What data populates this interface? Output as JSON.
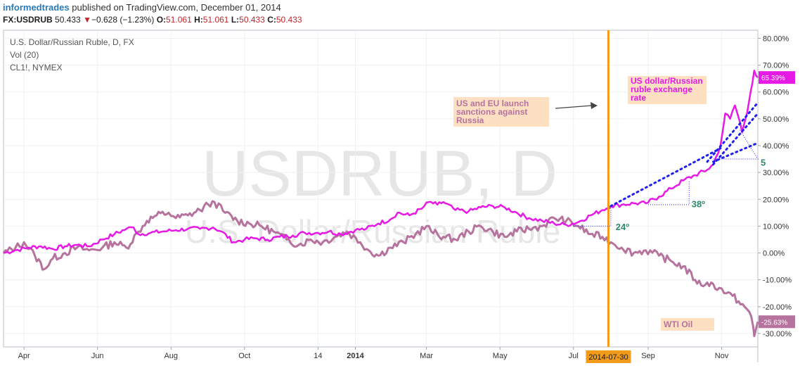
{
  "header": {
    "brand": "informedtrades",
    "published": "published on TradingView.com, December 01, 2014",
    "symbol": "FX:USDRUB",
    "last": "50.433",
    "change_arrow": "▼",
    "change": "−0.628 (−1.23%)",
    "o_label": "O:",
    "o_value": "51.061",
    "h_label": "H:",
    "h_value": "51.061",
    "l_label": "L:",
    "l_value": "50.433",
    "c_label": "C:",
    "c_value": "50.433"
  },
  "legend": {
    "line1": "U.S. Dollar/Russian Ruble, D, FX",
    "line2": "Vol (20)",
    "line3": "CL1!, NYMEX"
  },
  "watermark": {
    "big": "USDRUB, D",
    "small": "U.S. Dollar/Russian Ruble"
  },
  "chart_data": {
    "type": "line",
    "ylim": [
      -35,
      83
    ],
    "xlim": [
      "2013-03-15",
      "2014-12-01"
    ],
    "y_ticks": [
      {
        "v": 80,
        "label": "80.00%"
      },
      {
        "v": 70,
        "label": "70.00%"
      },
      {
        "v": 60,
        "label": "60.00%"
      },
      {
        "v": 50,
        "label": "50.00%"
      },
      {
        "v": 40,
        "label": "40.00%"
      },
      {
        "v": 30,
        "label": "30.00%"
      },
      {
        "v": 20,
        "label": "20.00%"
      },
      {
        "v": 10,
        "label": "10.00%"
      },
      {
        "v": 0,
        "label": "0.00%"
      },
      {
        "v": -10,
        "label": "-10.00%"
      },
      {
        "v": -20,
        "label": "-20.00%"
      },
      {
        "v": -30,
        "label": "-30.00%"
      }
    ],
    "x_ticks": [
      {
        "date": "2013-04-01",
        "label": "Apr",
        "bold": false
      },
      {
        "date": "2013-06-01",
        "label": "Jun",
        "bold": false
      },
      {
        "date": "2013-08-01",
        "label": "Aug",
        "bold": false
      },
      {
        "date": "2013-10-01",
        "label": "Oct",
        "bold": false
      },
      {
        "date": "2013-12-01",
        "label": "14",
        "bold": false
      },
      {
        "date": "2014-01-01",
        "label": "2014",
        "bold": true
      },
      {
        "date": "2014-03-01",
        "label": "Mar",
        "bold": false
      },
      {
        "date": "2014-05-01",
        "label": "May",
        "bold": false
      },
      {
        "date": "2014-07-01",
        "label": "Jul",
        "bold": false
      },
      {
        "date": "2014-09-01",
        "label": "Sep",
        "bold": false
      },
      {
        "date": "2014-11-01",
        "label": "Nov",
        "bold": false
      }
    ],
    "series": [
      {
        "name": "USDRUB",
        "color": "#e619e6",
        "last_label": "65.39%",
        "points": [
          [
            "2013-03-15",
            0
          ],
          [
            "2013-03-25",
            1
          ],
          [
            "2013-04-05",
            2
          ],
          [
            "2013-04-15",
            2.5
          ],
          [
            "2013-04-25",
            1.5
          ],
          [
            "2013-05-05",
            2.5
          ],
          [
            "2013-05-15",
            3
          ],
          [
            "2013-05-25",
            2.5
          ],
          [
            "2013-06-05",
            5
          ],
          [
            "2013-06-15",
            7
          ],
          [
            "2013-06-25",
            9
          ],
          [
            "2013-07-01",
            9.5
          ],
          [
            "2013-07-05",
            7
          ],
          [
            "2013-07-15",
            7.5
          ],
          [
            "2013-07-25",
            8
          ],
          [
            "2013-08-05",
            8.5
          ],
          [
            "2013-08-15",
            9
          ],
          [
            "2013-08-25",
            9
          ],
          [
            "2013-09-05",
            9.5
          ],
          [
            "2013-09-12",
            8
          ],
          [
            "2013-09-22",
            4
          ],
          [
            "2013-10-01",
            5
          ],
          [
            "2013-10-10",
            5.5
          ],
          [
            "2013-10-20",
            5
          ],
          [
            "2013-10-30",
            6
          ],
          [
            "2013-11-10",
            6.5
          ],
          [
            "2013-11-20",
            7.5
          ],
          [
            "2013-12-01",
            7.5
          ],
          [
            "2013-12-10",
            8
          ],
          [
            "2013-12-20",
            7
          ],
          [
            "2014-01-01",
            8.5
          ],
          [
            "2014-01-10",
            9
          ],
          [
            "2014-01-20",
            11
          ],
          [
            "2014-01-30",
            12.5
          ],
          [
            "2014-02-05",
            15
          ],
          [
            "2014-02-15",
            14
          ],
          [
            "2014-02-25",
            16.5
          ],
          [
            "2014-03-03",
            19
          ],
          [
            "2014-03-10",
            18
          ],
          [
            "2014-03-15",
            19
          ],
          [
            "2014-03-25",
            16
          ],
          [
            "2014-04-05",
            15.5
          ],
          [
            "2014-04-15",
            17
          ],
          [
            "2014-04-25",
            17.5
          ],
          [
            "2014-05-05",
            17
          ],
          [
            "2014-05-15",
            15
          ],
          [
            "2014-05-25",
            13
          ],
          [
            "2014-06-05",
            12
          ],
          [
            "2014-06-15",
            11
          ],
          [
            "2014-06-25",
            10.5
          ],
          [
            "2014-07-05",
            11.5
          ],
          [
            "2014-07-15",
            14
          ],
          [
            "2014-07-25",
            16
          ],
          [
            "2014-08-01",
            17.5
          ],
          [
            "2014-08-10",
            18
          ],
          [
            "2014-08-20",
            18.5
          ],
          [
            "2014-08-30",
            18.5
          ],
          [
            "2014-09-10",
            21
          ],
          [
            "2014-09-20",
            24
          ],
          [
            "2014-09-30",
            27
          ],
          [
            "2014-10-10",
            29
          ],
          [
            "2014-10-20",
            31
          ],
          [
            "2014-10-25",
            33
          ],
          [
            "2014-10-31",
            40
          ],
          [
            "2014-11-04",
            52
          ],
          [
            "2014-11-08",
            50
          ],
          [
            "2014-11-12",
            55
          ],
          [
            "2014-11-16",
            49
          ],
          [
            "2014-11-18",
            45
          ],
          [
            "2014-11-22",
            52
          ],
          [
            "2014-11-25",
            60
          ],
          [
            "2014-11-28",
            68
          ],
          [
            "2014-12-01",
            65.39
          ]
        ]
      },
      {
        "name": "CL1!",
        "color": "#b5739e",
        "last_label": "-25.63%",
        "points": [
          [
            "2013-03-15",
            0
          ],
          [
            "2013-03-25",
            2
          ],
          [
            "2013-04-01",
            4
          ],
          [
            "2013-04-10",
            -1
          ],
          [
            "2013-04-18",
            -6
          ],
          [
            "2013-04-25",
            -2
          ],
          [
            "2013-05-05",
            0
          ],
          [
            "2013-05-15",
            2
          ],
          [
            "2013-05-25",
            1
          ],
          [
            "2013-06-05",
            2
          ],
          [
            "2013-06-15",
            4
          ],
          [
            "2013-06-25",
            2
          ],
          [
            "2013-07-05",
            8
          ],
          [
            "2013-07-12",
            12
          ],
          [
            "2013-07-20",
            14
          ],
          [
            "2013-07-30",
            15
          ],
          [
            "2013-08-05",
            13
          ],
          [
            "2013-08-15",
            14
          ],
          [
            "2013-08-25",
            16
          ],
          [
            "2013-09-01",
            18
          ],
          [
            "2013-09-06",
            19
          ],
          [
            "2013-09-15",
            15
          ],
          [
            "2013-09-25",
            12
          ],
          [
            "2013-10-05",
            11
          ],
          [
            "2013-10-15",
            10
          ],
          [
            "2013-10-25",
            8
          ],
          [
            "2013-11-05",
            5
          ],
          [
            "2013-11-15",
            3
          ],
          [
            "2013-11-25",
            5
          ],
          [
            "2013-12-05",
            4
          ],
          [
            "2013-12-15",
            6
          ],
          [
            "2013-12-25",
            8
          ],
          [
            "2014-01-05",
            4
          ],
          [
            "2014-01-12",
            1
          ],
          [
            "2014-01-20",
            -1
          ],
          [
            "2014-01-30",
            2
          ],
          [
            "2014-02-10",
            4
          ],
          [
            "2014-02-20",
            7
          ],
          [
            "2014-03-01",
            10
          ],
          [
            "2014-03-05",
            8
          ],
          [
            "2014-03-15",
            6
          ],
          [
            "2014-03-25",
            5
          ],
          [
            "2014-04-05",
            8
          ],
          [
            "2014-04-15",
            10
          ],
          [
            "2014-04-25",
            8
          ],
          [
            "2014-05-05",
            6
          ],
          [
            "2014-05-15",
            8
          ],
          [
            "2014-05-25",
            9
          ],
          [
            "2014-06-05",
            10
          ],
          [
            "2014-06-15",
            13
          ],
          [
            "2014-06-25",
            12
          ],
          [
            "2014-07-05",
            10
          ],
          [
            "2014-07-15",
            7
          ],
          [
            "2014-07-25",
            6
          ],
          [
            "2014-08-01",
            4
          ],
          [
            "2014-08-10",
            2
          ],
          [
            "2014-08-20",
            0
          ],
          [
            "2014-08-30",
            1
          ],
          [
            "2014-09-10",
            -1
          ],
          [
            "2014-09-20",
            -3
          ],
          [
            "2014-09-30",
            -5
          ],
          [
            "2014-10-10",
            -10
          ],
          [
            "2014-10-15",
            -12
          ],
          [
            "2014-10-20",
            -11
          ],
          [
            "2014-10-30",
            -13
          ],
          [
            "2014-11-05",
            -15
          ],
          [
            "2014-11-10",
            -16
          ],
          [
            "2014-11-15",
            -18
          ],
          [
            "2014-11-20",
            -20
          ],
          [
            "2014-11-24",
            -22
          ],
          [
            "2014-11-27",
            -27
          ],
          [
            "2014-11-28",
            -31
          ],
          [
            "2014-12-01",
            -25.63
          ]
        ]
      }
    ],
    "vertical_marker": {
      "date": "2014-07-30",
      "label": "2014-07-30",
      "color": "#f39a1a"
    },
    "annotations": {
      "sanctions": {
        "line1": "US and EU launch",
        "line2": "sanctions against",
        "line3": "Russia"
      },
      "usd_label": {
        "line1": "US dollar/Russian",
        "line2": "ruble exchange",
        "line3": "rate"
      },
      "wti_label": "WTI Oil",
      "angle1": "24º",
      "angle2": "38º",
      "angle3": "5"
    }
  }
}
